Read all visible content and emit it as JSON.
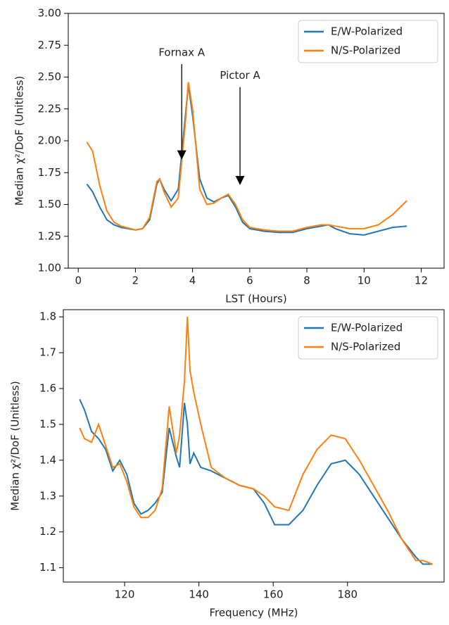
{
  "chart_data": [
    {
      "type": "line",
      "xlabel": "LST (Hours)",
      "ylabel": "Median χ²/DoF (Unitless)",
      "x": [
        0.3,
        0.5,
        0.75,
        1.0,
        1.25,
        1.5,
        2.0,
        2.25,
        2.5,
        2.75,
        2.85,
        3.0,
        3.25,
        3.5,
        3.75,
        3.85,
        4.0,
        4.25,
        4.5,
        4.75,
        5.0,
        5.25,
        5.5,
        5.75,
        6.0,
        6.5,
        7.0,
        7.5,
        8.0,
        8.5,
        8.75,
        9.0,
        9.5,
        10.0,
        10.5,
        11.0,
        11.5
      ],
      "series": [
        {
          "name": "E/W-Polarized",
          "color": "#1f77b4",
          "values": [
            1.66,
            1.6,
            1.48,
            1.38,
            1.34,
            1.32,
            1.3,
            1.31,
            1.38,
            1.66,
            1.7,
            1.62,
            1.53,
            1.62,
            2.2,
            2.44,
            2.2,
            1.7,
            1.55,
            1.52,
            1.55,
            1.57,
            1.48,
            1.36,
            1.31,
            1.29,
            1.28,
            1.28,
            1.31,
            1.33,
            1.34,
            1.31,
            1.27,
            1.26,
            1.29,
            1.32,
            1.33
          ]
        },
        {
          "name": "N/S-Polarized",
          "color": "#ff7f0e",
          "values": [
            1.99,
            1.92,
            1.65,
            1.45,
            1.36,
            1.33,
            1.3,
            1.31,
            1.4,
            1.68,
            1.7,
            1.6,
            1.48,
            1.55,
            2.15,
            2.46,
            2.25,
            1.62,
            1.5,
            1.51,
            1.55,
            1.58,
            1.5,
            1.38,
            1.32,
            1.3,
            1.29,
            1.29,
            1.32,
            1.34,
            1.34,
            1.33,
            1.31,
            1.31,
            1.34,
            1.42,
            1.53
          ]
        }
      ],
      "xlim": [
        -0.35,
        12.8
      ],
      "xticks": [
        0,
        2,
        4,
        6,
        8,
        10,
        12
      ],
      "ylim": [
        1,
        3
      ],
      "yticks": [
        {
          "value": 1,
          "label": "1.00"
        },
        1.25,
        {
          "value": 1.5,
          "label": "1.50"
        },
        1.75,
        {
          "value": 2,
          "label": "2.00"
        },
        2.25,
        {
          "value": 2.5,
          "label": "2.50"
        },
        2.75,
        {
          "value": 3,
          "label": "3.00"
        }
      ],
      "legend": "upper right",
      "annotations": [
        {
          "text": "Fornax A",
          "xy": [
            3.62,
            1.86
          ],
          "xytext": [
            3.62,
            2.69
          ]
        },
        {
          "text": "Pictor A",
          "xy": [
            5.66,
            1.66
          ],
          "xytext": [
            5.66,
            2.51
          ]
        }
      ]
    },
    {
      "type": "line",
      "xlabel": "Frequency (MHz)",
      "ylabel": "Median χ²/DoF (Unitless)",
      "x": [
        107.9,
        109.2,
        111.1,
        113.0,
        114.9,
        116.8,
        118.7,
        120.6,
        122.5,
        124.4,
        126.3,
        128.2,
        130.1,
        132.0,
        133.9,
        134.8,
        136.1,
        136.9,
        137.6,
        138.6,
        140.5,
        143.3,
        147.1,
        150.9,
        154.7,
        157.6,
        160.4,
        164.2,
        168.0,
        171.8,
        175.6,
        179.4,
        183.2,
        187.0,
        190.8,
        194.6,
        198.4,
        200.3,
        202.9
      ],
      "series": [
        {
          "name": "E/W-Polarized",
          "color": "#1f77b4",
          "values": [
            1.57,
            1.54,
            1.48,
            1.46,
            1.43,
            1.37,
            1.4,
            1.36,
            1.28,
            1.25,
            1.26,
            1.28,
            1.31,
            1.49,
            1.41,
            1.38,
            1.56,
            1.5,
            1.39,
            1.42,
            1.38,
            1.37,
            1.35,
            1.33,
            1.32,
            1.28,
            1.22,
            1.22,
            1.26,
            1.33,
            1.39,
            1.4,
            1.36,
            1.3,
            1.24,
            1.18,
            1.13,
            1.11,
            1.11
          ]
        },
        {
          "name": "N/S-Polarized",
          "color": "#ff7f0e",
          "values": [
            1.49,
            1.46,
            1.45,
            1.5,
            1.44,
            1.38,
            1.39,
            1.34,
            1.27,
            1.24,
            1.24,
            1.26,
            1.32,
            1.55,
            1.42,
            1.47,
            1.62,
            1.8,
            1.65,
            1.59,
            1.5,
            1.38,
            1.35,
            1.33,
            1.32,
            1.3,
            1.27,
            1.26,
            1.36,
            1.43,
            1.47,
            1.46,
            1.4,
            1.33,
            1.26,
            1.18,
            1.12,
            1.12,
            1.11
          ]
        }
      ],
      "xlim": [
        103.5,
        206
      ],
      "xticks": [
        120,
        140,
        160,
        180
      ],
      "ylim": [
        1.06,
        1.82
      ],
      "yticks": [
        1.1,
        1.2,
        1.3,
        1.4,
        1.5,
        1.6,
        1.7,
        1.8
      ],
      "legend": "upper right"
    }
  ]
}
